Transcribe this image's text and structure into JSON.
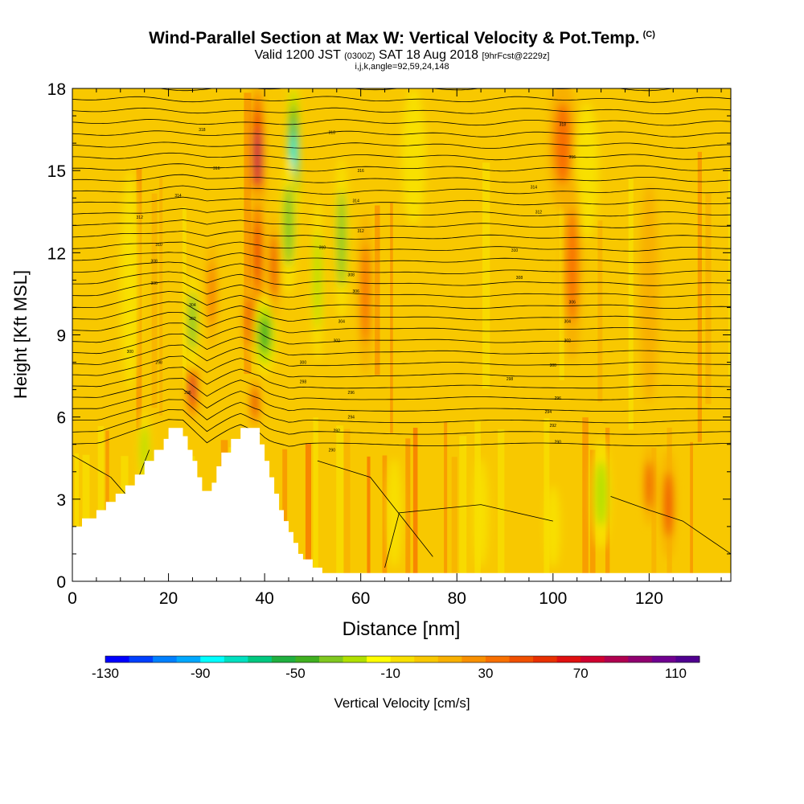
{
  "chart_data": {
    "type": "heatmap",
    "title": "Wind-Parallel Section at Max W: Vertical Velocity & Pot.Temp.",
    "title_mark": "(C)",
    "subtitle_parts": [
      "Valid 1200 JST ",
      "(0300Z)",
      " SAT 18 Aug 2018 ",
      "[9hrFcst@2229z]"
    ],
    "subline": "i,j,k,angle=92,59,24,148",
    "xlabel": "Distance [nm]",
    "ylabel": "Height [Kft MSL]",
    "xlim": [
      0,
      137
    ],
    "ylim": [
      0,
      18
    ],
    "x_ticks": [
      0,
      20,
      40,
      60,
      80,
      100,
      120
    ],
    "x_tick_labels": [
      "0",
      "20",
      "40",
      "60",
      "80",
      "100",
      "120"
    ],
    "y_ticks": [
      0,
      3,
      6,
      9,
      12,
      15,
      18
    ],
    "y_tick_labels": [
      "0",
      "3",
      "6",
      "9",
      "12",
      "15",
      "18"
    ],
    "colorbar": {
      "label": "Vertical Velocity [cm/s]",
      "min": -130,
      "max": 120,
      "step": 10,
      "tick_values": [
        -130,
        -90,
        -50,
        -10,
        30,
        70,
        110
      ],
      "tick_labels": [
        "-130",
        "-90",
        "-50",
        "-10",
        "30",
        "70",
        "110"
      ],
      "colors": [
        "#0000ff",
        "#0040ff",
        "#0080ff",
        "#00a8ff",
        "#00ffff",
        "#00e0c0",
        "#00c880",
        "#20b040",
        "#40b020",
        "#80c820",
        "#b0e000",
        "#ffff00",
        "#f8e000",
        "#f8c800",
        "#f8b000",
        "#f89000",
        "#f87000",
        "#f05000",
        "#e83000",
        "#e01010",
        "#d00030",
        "#b00050",
        "#900070",
        "#700090",
        "#500090"
      ]
    },
    "terrain_profile": [
      [
        0,
        2
      ],
      [
        2,
        2
      ],
      [
        2,
        2.3
      ],
      [
        5,
        2.3
      ],
      [
        5,
        2.6
      ],
      [
        7,
        2.6
      ],
      [
        7,
        2.9
      ],
      [
        9,
        2.9
      ],
      [
        9,
        3.2
      ],
      [
        11,
        3.2
      ],
      [
        11,
        3.5
      ],
      [
        13,
        3.5
      ],
      [
        13,
        3.9
      ],
      [
        15,
        3.9
      ],
      [
        15,
        4.4
      ],
      [
        17,
        4.4
      ],
      [
        17,
        4.8
      ],
      [
        19,
        4.8
      ],
      [
        19,
        5.2
      ],
      [
        20,
        5.2
      ],
      [
        20,
        5.6
      ],
      [
        23,
        5.6
      ],
      [
        23,
        5.3
      ],
      [
        24,
        5.3
      ],
      [
        24,
        4.8
      ],
      [
        25,
        4.8
      ],
      [
        25,
        4.4
      ],
      [
        26,
        4.4
      ],
      [
        26,
        3.8
      ],
      [
        27,
        3.8
      ],
      [
        27,
        3.3
      ],
      [
        29,
        3.3
      ],
      [
        29,
        3.6
      ],
      [
        30,
        3.6
      ],
      [
        30,
        4.2
      ],
      [
        31,
        4.2
      ],
      [
        31,
        4.7
      ],
      [
        33,
        4.7
      ],
      [
        33,
        5.2
      ],
      [
        35,
        5.2
      ],
      [
        35,
        5.6
      ],
      [
        39,
        5.6
      ],
      [
        39,
        5.0
      ],
      [
        40,
        5.0
      ],
      [
        40,
        4.4
      ],
      [
        41,
        4.4
      ],
      [
        41,
        3.8
      ],
      [
        42,
        3.8
      ],
      [
        42,
        3.2
      ],
      [
        43,
        3.2
      ],
      [
        43,
        2.6
      ],
      [
        44,
        2.6
      ],
      [
        44,
        2.2
      ],
      [
        45,
        2.2
      ],
      [
        45,
        1.8
      ],
      [
        46,
        1.8
      ],
      [
        46,
        1.4
      ],
      [
        47,
        1.4
      ],
      [
        47,
        1.0
      ],
      [
        48,
        1.0
      ],
      [
        48,
        0.8
      ],
      [
        50,
        0.8
      ],
      [
        50,
        0.5
      ],
      [
        52,
        0.5
      ],
      [
        52,
        0.3
      ],
      [
        137,
        0.3
      ]
    ],
    "ridge_points": [
      [
        0,
        0
      ],
      [
        0,
        2
      ],
      [
        20,
        5.6
      ],
      [
        23,
        5.6
      ],
      [
        28,
        3.3
      ],
      [
        35,
        5.6
      ],
      [
        39,
        5.6
      ],
      [
        52,
        0.3
      ],
      [
        137,
        0.3
      ]
    ],
    "contour_labels": [
      {
        "x": 27,
        "y": 16.5,
        "text": "318"
      },
      {
        "x": 30,
        "y": 15.1,
        "text": "316"
      },
      {
        "x": 22,
        "y": 14.1,
        "text": "314"
      },
      {
        "x": 14,
        "y": 13.3,
        "text": "312"
      },
      {
        "x": 18,
        "y": 12.3,
        "text": "310"
      },
      {
        "x": 17,
        "y": 11.7,
        "text": "308"
      },
      {
        "x": 17,
        "y": 10.9,
        "text": "306"
      },
      {
        "x": 25,
        "y": 10.1,
        "text": "304"
      },
      {
        "x": 25,
        "y": 9.6,
        "text": "302"
      },
      {
        "x": 12,
        "y": 8.4,
        "text": "300"
      },
      {
        "x": 18,
        "y": 8.0,
        "text": "298"
      },
      {
        "x": 24,
        "y": 6.9,
        "text": "296"
      },
      {
        "x": 54,
        "y": 16.4,
        "text": "318"
      },
      {
        "x": 60,
        "y": 15.0,
        "text": "316"
      },
      {
        "x": 59,
        "y": 13.9,
        "text": "314"
      },
      {
        "x": 60,
        "y": 12.8,
        "text": "312"
      },
      {
        "x": 52,
        "y": 12.2,
        "text": "310"
      },
      {
        "x": 58,
        "y": 11.2,
        "text": "308"
      },
      {
        "x": 59,
        "y": 10.6,
        "text": "306"
      },
      {
        "x": 56,
        "y": 9.5,
        "text": "304"
      },
      {
        "x": 55,
        "y": 8.8,
        "text": "302"
      },
      {
        "x": 48,
        "y": 8.0,
        "text": "300"
      },
      {
        "x": 48,
        "y": 7.3,
        "text": "298"
      },
      {
        "x": 58,
        "y": 6.9,
        "text": "296"
      },
      {
        "x": 58,
        "y": 6.0,
        "text": "294"
      },
      {
        "x": 55,
        "y": 5.5,
        "text": "292"
      },
      {
        "x": 54,
        "y": 4.8,
        "text": "290"
      },
      {
        "x": 102,
        "y": 16.7,
        "text": "318"
      },
      {
        "x": 104,
        "y": 15.5,
        "text": "316"
      },
      {
        "x": 96,
        "y": 14.4,
        "text": "314"
      },
      {
        "x": 97,
        "y": 13.5,
        "text": "312"
      },
      {
        "x": 92,
        "y": 12.1,
        "text": "310"
      },
      {
        "x": 93,
        "y": 11.1,
        "text": "308"
      },
      {
        "x": 104,
        "y": 10.2,
        "text": "306"
      },
      {
        "x": 103,
        "y": 9.5,
        "text": "304"
      },
      {
        "x": 103,
        "y": 8.8,
        "text": "302"
      },
      {
        "x": 100,
        "y": 7.9,
        "text": "300"
      },
      {
        "x": 91,
        "y": 7.4,
        "text": "298"
      },
      {
        "x": 101,
        "y": 6.7,
        "text": "296"
      },
      {
        "x": 99,
        "y": 6.2,
        "text": "294"
      },
      {
        "x": 100,
        "y": 5.7,
        "text": "292"
      },
      {
        "x": 101,
        "y": 5.1,
        "text": "290"
      }
    ],
    "velocity_features": [
      {
        "x": 38.5,
        "y": 15.5,
        "w": 1.6,
        "h": 3.0,
        "v": 80
      },
      {
        "x": 38.5,
        "y": 12.0,
        "w": 1.4,
        "h": 2.5,
        "v": 50
      },
      {
        "x": 37,
        "y": 9.5,
        "w": 1.5,
        "h": 1.5,
        "v": 40
      },
      {
        "x": 46,
        "y": 15.5,
        "w": 1.5,
        "h": 3.0,
        "v": -90
      },
      {
        "x": 45,
        "y": 13.0,
        "w": 1.8,
        "h": 2.5,
        "v": -40
      },
      {
        "x": 40,
        "y": 9.0,
        "w": 2.5,
        "h": 1.5,
        "v": -50
      },
      {
        "x": 25,
        "y": 7.0,
        "w": 1.2,
        "h": 1.2,
        "v": 70
      },
      {
        "x": 38,
        "y": 6.5,
        "w": 1.0,
        "h": 1.0,
        "v": 60
      },
      {
        "x": 25,
        "y": 9.5,
        "w": 1.5,
        "h": 1.8,
        "v": -40
      },
      {
        "x": 29,
        "y": 10.5,
        "w": 1.0,
        "h": 2.0,
        "v": 30
      },
      {
        "x": 42,
        "y": 11.5,
        "w": 1.2,
        "h": 2.0,
        "v": 40
      },
      {
        "x": 51,
        "y": 11.0,
        "w": 1.2,
        "h": 3.0,
        "v": -30
      },
      {
        "x": 56,
        "y": 12.5,
        "w": 1.5,
        "h": 3.0,
        "v": -40
      },
      {
        "x": 61,
        "y": 10.5,
        "w": 1.5,
        "h": 3.0,
        "v": 30
      },
      {
        "x": 71,
        "y": 15.5,
        "w": 2.5,
        "h": 2.5,
        "v": -20
      },
      {
        "x": 102,
        "y": 16.0,
        "w": 3.0,
        "h": 2.5,
        "v": 30
      },
      {
        "x": 107,
        "y": 15.0,
        "w": 2.5,
        "h": 2.5,
        "v": -20
      },
      {
        "x": 110,
        "y": 3.2,
        "w": 2.0,
        "h": 2.0,
        "v": -30
      },
      {
        "x": 100,
        "y": 2.0,
        "w": 1.5,
        "h": 1.5,
        "v": -20
      },
      {
        "x": 67,
        "y": 2.5,
        "w": 1.5,
        "h": 2.0,
        "v": -20
      },
      {
        "x": 85,
        "y": 2.5,
        "w": 1.5,
        "h": 2.0,
        "v": -20
      },
      {
        "x": 124,
        "y": 2.8,
        "w": 1.5,
        "h": 2.0,
        "v": 40
      },
      {
        "x": 120,
        "y": 3.5,
        "w": 1.2,
        "h": 1.5,
        "v": 40
      },
      {
        "x": 15,
        "y": 4.8,
        "w": 1.2,
        "h": 1.5,
        "v": -30
      },
      {
        "x": 12,
        "y": 11.0,
        "w": 2.0,
        "h": 4.0,
        "v": -20
      },
      {
        "x": 104,
        "y": 11.5,
        "w": 2.0,
        "h": 3.5,
        "v": 30
      },
      {
        "x": 120,
        "y": 10.5,
        "w": 2.0,
        "h": 4.0,
        "v": 10
      }
    ]
  }
}
